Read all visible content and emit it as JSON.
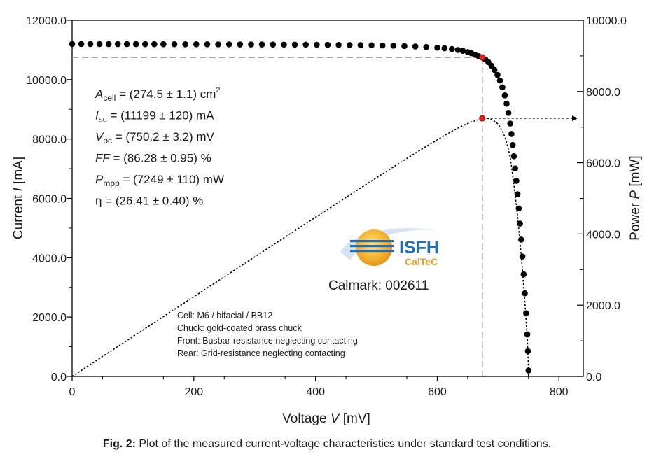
{
  "chart_data": {
    "type": "scatter",
    "xlabel": {
      "prefix": "Voltage ",
      "var": "V",
      "unit": " [mV]"
    },
    "ylabel_left": {
      "prefix": "Current ",
      "var": "I",
      "unit": " [mA]"
    },
    "ylabel_right": {
      "prefix": "Power ",
      "var": "P",
      "unit": " [mW]"
    },
    "xlim": [
      0,
      840
    ],
    "ylim_left": [
      0,
      12000
    ],
    "ylim_right": [
      0,
      10000
    ],
    "x_ticks": [
      "0",
      "200",
      "400",
      "600",
      "800"
    ],
    "x_tick_values": [
      0,
      200,
      400,
      600,
      800
    ],
    "y_left_ticks": [
      "0.0",
      "2000.0",
      "4000.0",
      "6000.0",
      "8000.0",
      "10000.0",
      "12000.0"
    ],
    "y_left_tick_values": [
      0,
      2000,
      4000,
      6000,
      8000,
      10000,
      12000
    ],
    "y_right_ticks": [
      "0.0",
      "2000.0",
      "4000.0",
      "6000.0",
      "8000.0",
      "10000.0"
    ],
    "y_right_tick_values": [
      0,
      2000,
      4000,
      6000,
      8000,
      10000
    ],
    "grid": false,
    "mpp": {
      "voltage": 674,
      "current": 10750,
      "power": 7249
    },
    "iv_points": [
      [
        0,
        11199
      ],
      [
        15,
        11199
      ],
      [
        30,
        11198
      ],
      [
        45,
        11198
      ],
      [
        60,
        11197
      ],
      [
        75,
        11197
      ],
      [
        90,
        11196
      ],
      [
        105,
        11196
      ],
      [
        120,
        11195
      ],
      [
        135,
        11195
      ],
      [
        150,
        11194
      ],
      [
        168,
        11193
      ],
      [
        186,
        11192
      ],
      [
        204,
        11191
      ],
      [
        222,
        11190
      ],
      [
        240,
        11189
      ],
      [
        258,
        11188
      ],
      [
        276,
        11186
      ],
      [
        294,
        11185
      ],
      [
        312,
        11184
      ],
      [
        330,
        11182
      ],
      [
        348,
        11181
      ],
      [
        366,
        11179
      ],
      [
        384,
        11177
      ],
      [
        402,
        11175
      ],
      [
        420,
        11172
      ],
      [
        438,
        11169
      ],
      [
        456,
        11166
      ],
      [
        474,
        11162
      ],
      [
        492,
        11157
      ],
      [
        510,
        11150
      ],
      [
        528,
        11142
      ],
      [
        546,
        11132
      ],
      [
        564,
        11118
      ],
      [
        582,
        11100
      ],
      [
        600,
        11075
      ],
      [
        612,
        11055
      ],
      [
        624,
        11030
      ],
      [
        634,
        11000
      ],
      [
        642,
        10970
      ],
      [
        650,
        10930
      ],
      [
        656,
        10890
      ],
      [
        662,
        10840
      ],
      [
        668,
        10790
      ],
      [
        674,
        10750
      ],
      [
        679,
        10680
      ],
      [
        684,
        10590
      ],
      [
        689,
        10470
      ],
      [
        694,
        10330
      ],
      [
        699,
        10160
      ],
      [
        703,
        9970
      ],
      [
        707,
        9740
      ],
      [
        711,
        9470
      ],
      [
        714,
        9190
      ],
      [
        717,
        8880
      ],
      [
        720,
        8520
      ],
      [
        722,
        8170
      ],
      [
        724,
        7800
      ],
      [
        726,
        7420
      ],
      [
        728,
        7010
      ],
      [
        730,
        6590
      ],
      [
        732,
        6140
      ],
      [
        734,
        5660
      ],
      [
        736,
        5150
      ],
      [
        738,
        4610
      ],
      [
        740,
        4040
      ],
      [
        742,
        3440
      ],
      [
        744,
        2800
      ],
      [
        746,
        2130
      ],
      [
        748,
        1420
      ],
      [
        749,
        850
      ],
      [
        750,
        200
      ]
    ],
    "pv_curve_label": "",
    "annotations": [
      "A_cell = (274.5 ± 1.1) cm²",
      "I_sc = (11199 ± 120) mA",
      "V_oc = (750.2 ± 3.2) mV",
      "FF = (86.28 ± 0.95) %",
      "P_mpp = (7249 ± 110) mW",
      "η = (26.41 ± 0.40) %"
    ],
    "colors": {
      "points": "#000000",
      "mpp_marker": "#e0201b",
      "guide": "#999999"
    }
  },
  "params": [
    {
      "var": "A",
      "sub": "cell",
      "text": " = (274.5 ± 1.1) cm",
      "sup": "2"
    },
    {
      "var": "I",
      "sub": "sc",
      "text": " = (11199 ± 120) mA",
      "sup": ""
    },
    {
      "var": "V",
      "sub": "oc",
      "text": " = (750.2 ± 3.2) mV",
      "sup": ""
    },
    {
      "var": "FF",
      "sub": "",
      "text": " = (86.28 ± 0.95) %",
      "sup": ""
    },
    {
      "var": "P",
      "sub": "mpp",
      "text": " = (7249 ± 110) mW",
      "sup": ""
    },
    {
      "var": "",
      "sub": "",
      "text": "η = (26.41 ± 0.40) %",
      "sup": ""
    }
  ],
  "logo": {
    "name": "ISFH",
    "sub": "CalTeC"
  },
  "calmark": "Calmark: 002611",
  "notes": [
    "Cell: M6 / bifacial / BB12",
    "Chuck: gold-coated brass chuck",
    "Front: Busbar-resistance neglecting contacting",
    "Rear: Grid-resistance neglecting contacting"
  ],
  "caption": {
    "label": "Fig. 2:",
    "text": " Plot of the measured current-voltage characteristics under standard test conditions."
  }
}
